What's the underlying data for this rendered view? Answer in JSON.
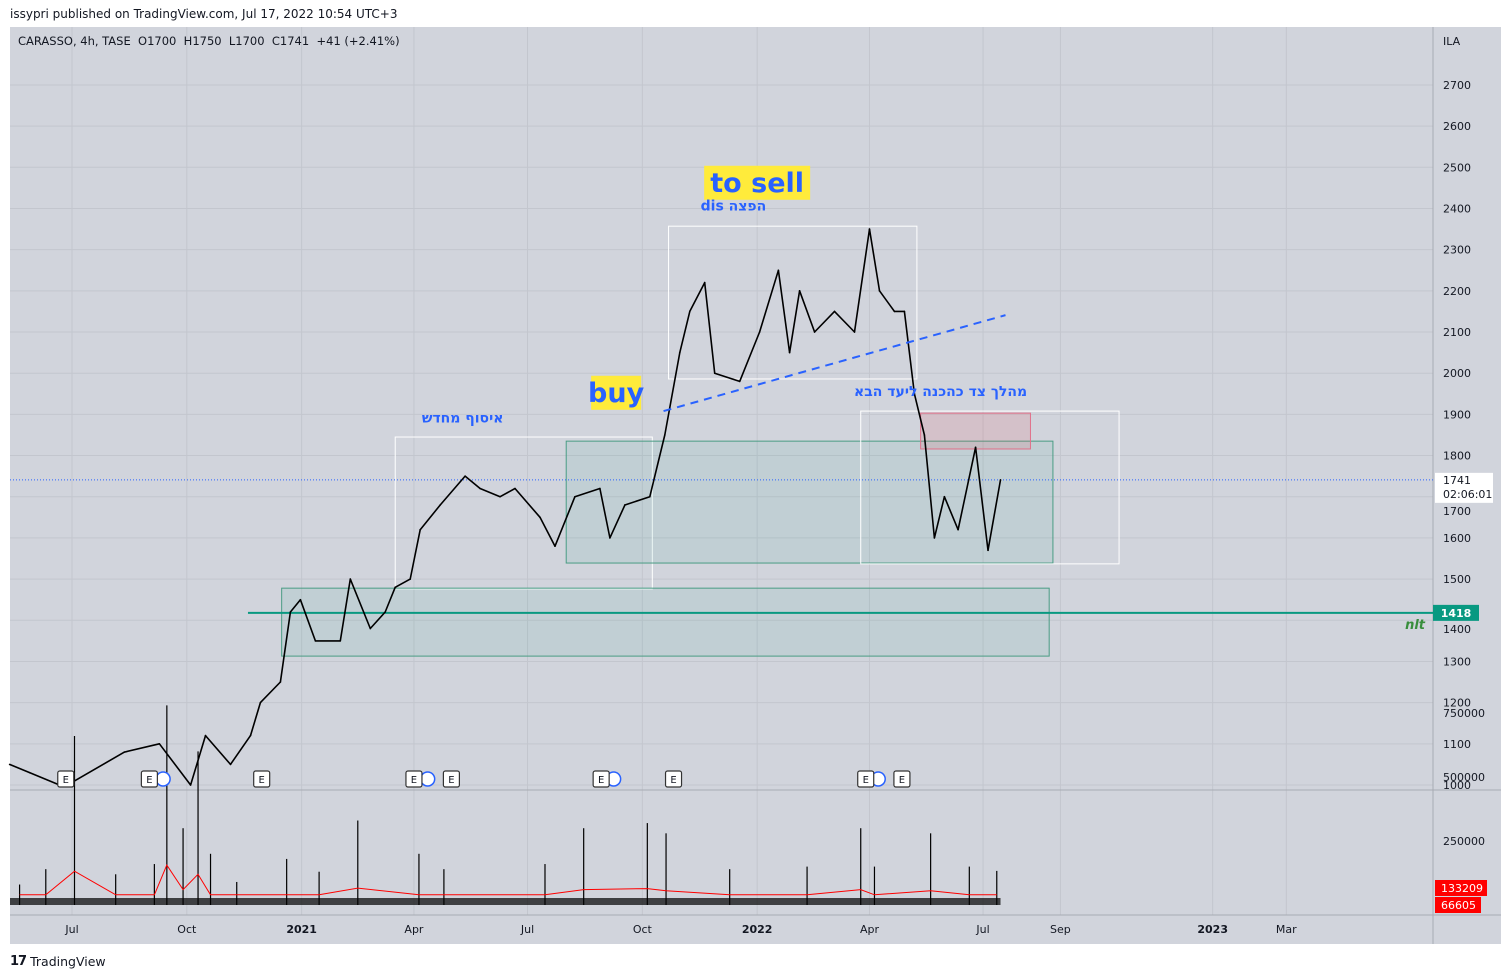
{
  "header": {
    "published": "issypri published on TradingView.com, Jul 17, 2022 10:54 UTC+3"
  },
  "legend": {
    "text": "CARASSO, 4h, TASE  O1700  H1750  L1700  C1741  +41 (+2.41%)"
  },
  "footer": {
    "logo": "17",
    "brand": "TradingView"
  },
  "colors": {
    "background": "#d1d4dc",
    "price": "#000000",
    "accent_blue": "#2962ff",
    "green": "#089981",
    "volume_ma": "#ff0000",
    "label_bg": "#ffeb3b"
  },
  "chart_data": {
    "type": "line",
    "symbol": "CARASSO",
    "interval": "4h",
    "exchange": "TASE",
    "currency": "ILA",
    "ohlc_last": {
      "open": 1700,
      "high": 1750,
      "low": 1700,
      "close": 1741,
      "change": "+41",
      "change_pct": "(+2.41%)"
    },
    "ylim": [
      1000,
      2700
    ],
    "yticks": [
      "1000",
      "1100",
      "1200",
      "1300",
      "1400",
      "1500",
      "1600",
      "1700",
      "1800",
      "1900",
      "2000",
      "2100",
      "2200",
      "2300",
      "2400",
      "2500",
      "2600",
      "2700"
    ],
    "xticks": [
      {
        "label": "Jul",
        "date": "2020-07-01"
      },
      {
        "label": "Oct",
        "date": "2020-10-01"
      },
      {
        "label": "2021",
        "date": "2021-01-01",
        "bold": true
      },
      {
        "label": "Apr",
        "date": "2021-04-01"
      },
      {
        "label": "Jul",
        "date": "2021-07-01"
      },
      {
        "label": "Oct",
        "date": "2021-10-01"
      },
      {
        "label": "2022",
        "date": "2022-01-01",
        "bold": true
      },
      {
        "label": "Apr",
        "date": "2022-04-01"
      },
      {
        "label": "Jul",
        "date": "2022-07-01"
      },
      {
        "label": "Sep",
        "date": "2022-09-01"
      },
      {
        "label": "2023",
        "date": "2023-01-01",
        "bold": true
      },
      {
        "label": "Mar",
        "date": "2023-03-01"
      }
    ],
    "series": [
      {
        "name": "CARASSO close",
        "points": [
          [
            "2020-05-12",
            1050
          ],
          [
            "2020-05-28",
            1030
          ],
          [
            "2020-06-21",
            1000
          ],
          [
            "2020-07-03",
            1010
          ],
          [
            "2020-08-12",
            1080
          ],
          [
            "2020-09-09",
            1100
          ],
          [
            "2020-10-04",
            1000
          ],
          [
            "2020-10-16",
            1120
          ],
          [
            "2020-11-05",
            1050
          ],
          [
            "2020-11-21",
            1120
          ],
          [
            "2020-11-29",
            1200
          ],
          [
            "2020-12-15",
            1250
          ],
          [
            "2020-12-23",
            1420
          ],
          [
            "2020-12-31",
            1450
          ],
          [
            "2021-01-12",
            1350
          ],
          [
            "2021-02-01",
            1350
          ],
          [
            "2021-02-09",
            1500
          ],
          [
            "2021-02-25",
            1380
          ],
          [
            "2021-03-09",
            1420
          ],
          [
            "2021-03-17",
            1480
          ],
          [
            "2021-03-29",
            1500
          ],
          [
            "2021-04-06",
            1620
          ],
          [
            "2021-04-22",
            1680
          ],
          [
            "2021-05-12",
            1750
          ],
          [
            "2021-05-24",
            1720
          ],
          [
            "2021-06-09",
            1700
          ],
          [
            "2021-06-21",
            1720
          ],
          [
            "2021-07-11",
            1650
          ],
          [
            "2021-07-23",
            1580
          ],
          [
            "2021-08-08",
            1700
          ],
          [
            "2021-08-28",
            1720
          ],
          [
            "2021-09-05",
            1600
          ],
          [
            "2021-09-17",
            1680
          ],
          [
            "2021-10-07",
            1700
          ],
          [
            "2021-10-19",
            1850
          ],
          [
            "2021-10-31",
            2050
          ],
          [
            "2021-11-08",
            2150
          ],
          [
            "2021-11-20",
            2220
          ],
          [
            "2021-11-28",
            2000
          ],
          [
            "2021-12-18",
            1980
          ],
          [
            "2022-01-03",
            2100
          ],
          [
            "2022-01-18",
            2250
          ],
          [
            "2022-01-27",
            2050
          ],
          [
            "2022-02-04",
            2200
          ],
          [
            "2022-02-16",
            2100
          ],
          [
            "2022-03-04",
            2150
          ],
          [
            "2022-03-20",
            2100
          ],
          [
            "2022-04-01",
            2350
          ],
          [
            "2022-04-09",
            2200
          ],
          [
            "2022-04-21",
            2150
          ],
          [
            "2022-04-29",
            2150
          ],
          [
            "2022-05-07",
            1950
          ],
          [
            "2022-05-15",
            1850
          ],
          [
            "2022-05-23",
            1600
          ],
          [
            "2022-05-31",
            1700
          ],
          [
            "2022-06-11",
            1620
          ],
          [
            "2022-06-25",
            1820
          ],
          [
            "2022-07-05",
            1570
          ],
          [
            "2022-07-15",
            1741
          ]
        ]
      }
    ],
    "volume": {
      "ylim": [
        0,
        900000
      ],
      "yticks": [
        "250000",
        "500000",
        "750000"
      ],
      "last_volume": "133209",
      "volume_ma": "66605",
      "bars": [
        [
          "2020-05-20",
          80000
        ],
        [
          "2020-06-10",
          140000
        ],
        [
          "2020-07-03",
          660000
        ],
        [
          "2020-08-05",
          120000
        ],
        [
          "2020-09-05",
          160000
        ],
        [
          "2020-09-15",
          780000
        ],
        [
          "2020-09-28",
          300000
        ],
        [
          "2020-10-10",
          600000
        ],
        [
          "2020-10-20",
          200000
        ],
        [
          "2020-11-10",
          90000
        ],
        [
          "2020-12-20",
          180000
        ],
        [
          "2021-01-15",
          130000
        ],
        [
          "2021-02-15",
          330000
        ],
        [
          "2021-04-05",
          200000
        ],
        [
          "2021-04-25",
          140000
        ],
        [
          "2021-07-15",
          160000
        ],
        [
          "2021-08-15",
          300000
        ],
        [
          "2021-10-05",
          320000
        ],
        [
          "2021-10-20",
          280000
        ],
        [
          "2021-12-10",
          140000
        ],
        [
          "2022-02-10",
          150000
        ],
        [
          "2022-03-25",
          300000
        ],
        [
          "2022-04-05",
          150000
        ],
        [
          "2022-05-20",
          280000
        ],
        [
          "2022-06-20",
          150000
        ],
        [
          "2022-07-12",
          133209
        ]
      ]
    },
    "current_price": {
      "value": 1741,
      "label": "1741",
      "countdown": "02:06:01"
    },
    "hline": {
      "value": 1418,
      "label": "1418",
      "name": "nlt",
      "from": "2020-11-19"
    },
    "trendline": {
      "from": [
        "2021-10-18",
        1908
      ],
      "to": [
        "2022-07-19",
        2141
      ]
    },
    "boxes": [
      {
        "name": "accumulation-box",
        "from": "2021-03-17",
        "to": "2021-10-09",
        "top": 1845,
        "bottom": 1476,
        "kind": "white"
      },
      {
        "name": "support-zone-box",
        "from": "2021-08-01",
        "to": "2022-08-26",
        "top": 1835,
        "bottom": 1539,
        "kind": "green"
      },
      {
        "name": "distribution-box",
        "from": "2021-10-22",
        "to": "2022-05-09",
        "top": 2357,
        "bottom": 1986,
        "kind": "white"
      },
      {
        "name": "sideways-box",
        "from": "2022-03-25",
        "to": "2022-10-18",
        "top": 1908,
        "bottom": 1537,
        "kind": "white"
      },
      {
        "name": "resistance-box",
        "from": "2022-05-12",
        "to": "2022-08-08",
        "top": 1903,
        "bottom": 1816,
        "kind": "pink"
      },
      {
        "name": "base-box",
        "from": "2020-12-16",
        "to": "2022-08-23",
        "top": 1478,
        "bottom": 1313,
        "kind": "green"
      }
    ],
    "annotations": [
      {
        "text": "to sell",
        "date": "2022-01-01",
        "price": 2460,
        "style": "highlight"
      },
      {
        "text": "הפצה dis",
        "date": "2021-12-13",
        "price": 2395,
        "style": "blue"
      },
      {
        "text": "buy",
        "date": "2021-09-10",
        "price": 1950,
        "style": "highlight"
      },
      {
        "text": "איסוף מחדש",
        "date": "2021-05-10",
        "price": 1880,
        "style": "blue"
      },
      {
        "text": "מהלך צד כהכנה ליעד הבא",
        "date": "2022-05-28",
        "price": 1945,
        "style": "blue"
      }
    ],
    "events": {
      "earnings_label": "E",
      "earnings": [
        "2020-06-26",
        "2020-09-01",
        "2020-11-30",
        "2021-04-01",
        "2021-05-01",
        "2021-08-29",
        "2021-10-26",
        "2022-03-29",
        "2022-04-27"
      ],
      "dividends": [
        "2020-09-12",
        "2021-04-12",
        "2021-09-08",
        "2022-04-08"
      ]
    }
  }
}
